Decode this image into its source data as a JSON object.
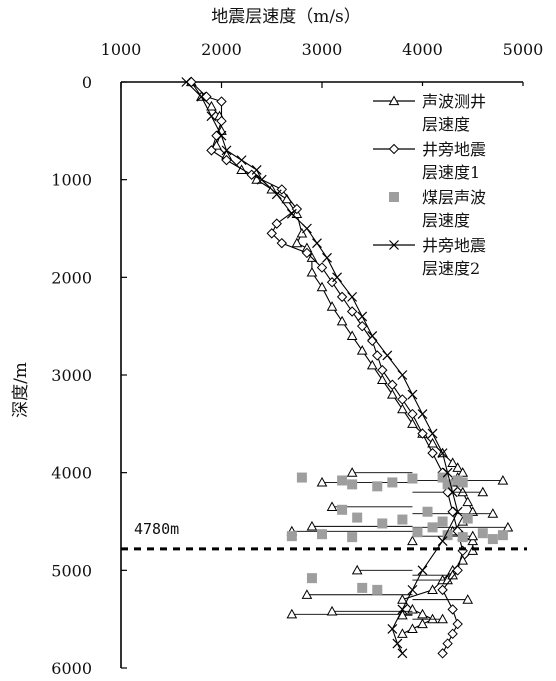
{
  "chart_data": {
    "type": "line",
    "xlabel": "地震层速度（m/s）",
    "ylabel": "深度/m",
    "x_position": "top",
    "y_inverted": true,
    "xlim": [
      1000,
      5000
    ],
    "ylim": [
      0,
      6000
    ],
    "xticks": [
      "1000",
      "2000",
      "3000",
      "4000",
      "5000"
    ],
    "yticks": [
      "0",
      "1000",
      "2000",
      "3000",
      "4000",
      "5000",
      "6000"
    ],
    "grid": false,
    "legend_position": "top-right",
    "annotations": [
      {
        "text": "4780m",
        "depth": 4780,
        "style": "dashed-horizontal-line"
      }
    ],
    "series": [
      {
        "name": "声波测井层速度",
        "marker": "triangle",
        "x": [
          1700,
          1800,
          1900,
          1980,
          2000,
          1950,
          2050,
          2200,
          2350,
          2500,
          2650,
          2750,
          2800,
          2750,
          2850,
          2900,
          2900,
          3000,
          3100,
          3200,
          3300,
          3400,
          3500,
          3600,
          3700,
          3800,
          3900,
          4000,
          4100,
          4200,
          4300,
          4350,
          4400,
          4350,
          4300,
          4400,
          4450,
          4500,
          4400,
          4300,
          4400,
          4500,
          4500,
          4400,
          4300,
          4200,
          4100,
          3800,
          3900,
          4000,
          4100,
          4000,
          3900,
          3800
        ],
        "y": [
          0,
          150,
          250,
          350,
          500,
          650,
          750,
          900,
          1000,
          1100,
          1200,
          1350,
          1550,
          1650,
          1700,
          1800,
          1950,
          2100,
          2300,
          2450,
          2600,
          2750,
          2900,
          3050,
          3200,
          3350,
          3500,
          3600,
          3700,
          3800,
          3900,
          3950,
          4000,
          4050,
          4100,
          4200,
          4300,
          4400,
          4500,
          4600,
          4650,
          4700,
          4800,
          4900,
          5000,
          5100,
          5200,
          5300,
          5400,
          5450,
          5500,
          5550,
          5600,
          5650
        ],
        "scatter": [
          [
            3300,
            4000
          ],
          [
            4800,
            4080
          ],
          [
            3000,
            4100
          ],
          [
            4600,
            4200
          ],
          [
            3100,
            4350
          ],
          [
            4850,
            4560
          ],
          [
            2700,
            4600
          ],
          [
            4500,
            4650
          ],
          [
            3900,
            4700
          ],
          [
            2900,
            4550
          ],
          [
            4700,
            4420
          ],
          [
            3350,
            5000
          ],
          [
            4250,
            5100
          ],
          [
            2850,
            5250
          ],
          [
            4450,
            5300
          ],
          [
            2700,
            5450
          ],
          [
            4200,
            5500
          ],
          [
            3100,
            5420
          ],
          [
            3800,
            5460
          ],
          [
            4300,
            5050
          ]
        ]
      },
      {
        "name": "井旁地震层速度1",
        "marker": "diamond",
        "x": [
          1700,
          1850,
          2000,
          2000,
          1950,
          1900,
          2050,
          2300,
          2600,
          2750,
          2550,
          2500,
          2600,
          2850,
          3000,
          3100,
          3200,
          3300,
          3400,
          3500,
          3550,
          3600,
          3700,
          3800,
          3900,
          4000,
          4100,
          4200,
          4250,
          4300,
          4350,
          4400,
          4350,
          4200,
          4300,
          4350,
          4300,
          4250,
          4200
        ],
        "y": [
          0,
          150,
          200,
          400,
          550,
          700,
          800,
          950,
          1100,
          1300,
          1450,
          1550,
          1650,
          1750,
          1900,
          2050,
          2200,
          2350,
          2500,
          2650,
          2800,
          2950,
          3100,
          3250,
          3400,
          3600,
          3800,
          4000,
          4200,
          4400,
          4600,
          4800,
          5000,
          5200,
          5400,
          5550,
          5650,
          5750,
          5850
        ]
      },
      {
        "name": "煤层声波层速度",
        "marker": "square",
        "x": [
          2800,
          3200,
          3300,
          3550,
          3700,
          3900,
          4200,
          4250,
          4350,
          4400,
          3200,
          3350,
          3600,
          3800,
          4050,
          4200,
          4450,
          2700,
          3000,
          3300,
          3950,
          4100,
          4250,
          4400,
          4600,
          4700,
          4800,
          2900,
          3400,
          3550
        ],
        "y": [
          4050,
          4080,
          4120,
          4140,
          4100,
          4060,
          4050,
          4120,
          4080,
          4100,
          4380,
          4460,
          4520,
          4480,
          4400,
          4500,
          4470,
          4650,
          4630,
          4660,
          4610,
          4560,
          4640,
          4660,
          4620,
          4680,
          4640,
          5080,
          5180,
          5200
        ]
      },
      {
        "name": "井旁地震层速度2",
        "marker": "x",
        "x": [
          1650,
          1800,
          1900,
          2000,
          2050,
          2200,
          2350,
          2400,
          2550,
          2700,
          2850,
          2950,
          3050,
          3150,
          3300,
          3400,
          3500,
          3650,
          3800,
          3900,
          4000,
          4100,
          4200,
          4250,
          4300,
          4350,
          4200,
          4000,
          3900,
          3800,
          3700,
          3750,
          3800
        ],
        "y": [
          0,
          150,
          350,
          550,
          700,
          800,
          900,
          1000,
          1150,
          1350,
          1500,
          1650,
          1800,
          2000,
          2200,
          2400,
          2600,
          2800,
          3000,
          3200,
          3400,
          3600,
          3800,
          4000,
          4200,
          4400,
          4700,
          5000,
          5200,
          5400,
          5600,
          5750,
          5850
        ]
      }
    ]
  }
}
